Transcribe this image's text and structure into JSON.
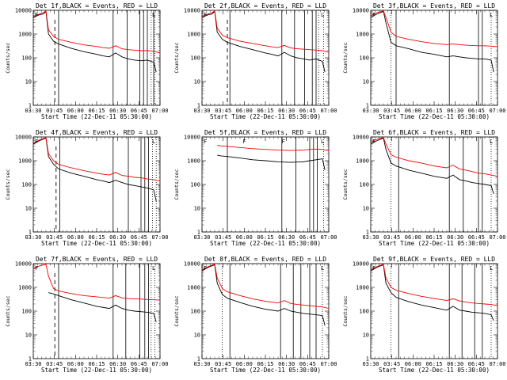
{
  "colors": {
    "events": "#000000",
    "lld": "#ff0000",
    "background": "#ffffff"
  },
  "common": {
    "xticks": [
      "03:30",
      "03:45",
      "06:00",
      "06:15",
      "06:30",
      "06:45",
      "07:00"
    ],
    "xlabel": "Start Time (22-Dec-11 05:30:00)",
    "ylabel": "Counts/sec",
    "yticks": [
      "1",
      "10",
      "100",
      "1000",
      "10000"
    ],
    "ylim": [
      1,
      10000
    ],
    "yscale": "log",
    "xlim": [
      0,
      100
    ]
  },
  "chart_data": [
    {
      "type": "line",
      "title": "Det 1f,BLACK = Events, RED = LLD",
      "corner_marks": [
        "F",
        "L"
      ],
      "dashed_lines": [
        17
      ],
      "solid_lines": [
        20,
        63,
        74,
        84,
        87,
        90,
        95
      ],
      "dotted_lines": [
        93,
        96
      ],
      "series": [
        {
          "name": "Events",
          "color": "#000000",
          "x": [
            0,
            5,
            8,
            10,
            12,
            16,
            20,
            30,
            40,
            50,
            55,
            60,
            65,
            70,
            75,
            80,
            85,
            90,
            95,
            97
          ],
          "values": [
            5000,
            6500,
            7000,
            9000,
            1000,
            500,
            380,
            250,
            180,
            140,
            120,
            110,
            160,
            110,
            90,
            80,
            75,
            80,
            65,
            25
          ]
        },
        {
          "name": "LLD",
          "color": "#ff0000",
          "x": [
            0,
            5,
            8,
            10,
            12,
            16,
            20,
            30,
            40,
            50,
            55,
            60,
            65,
            70,
            75,
            80,
            85,
            90,
            95,
            100
          ],
          "values": [
            5500,
            7000,
            8000,
            9500,
            1500,
            800,
            600,
            450,
            350,
            300,
            270,
            250,
            320,
            240,
            220,
            210,
            200,
            200,
            190,
            160
          ]
        }
      ]
    },
    {
      "type": "line",
      "title": "Det 2f,BLACK = Events, RED = LLD",
      "corner_marks": [
        "F",
        "L"
      ],
      "dashed_lines": [
        20
      ],
      "solid_lines": [
        22,
        63,
        73,
        81,
        87,
        90
      ],
      "dotted_lines": [
        92,
        96
      ],
      "series": [
        {
          "name": "Events",
          "color": "#000000",
          "x": [
            0,
            5,
            8,
            10,
            12,
            16,
            20,
            30,
            40,
            50,
            55,
            60,
            65,
            70,
            75,
            80,
            85,
            90,
            95,
            97
          ],
          "values": [
            5000,
            6500,
            7000,
            9000,
            1200,
            600,
            450,
            300,
            220,
            160,
            140,
            120,
            170,
            120,
            100,
            90,
            80,
            90,
            70,
            25
          ]
        },
        {
          "name": "LLD",
          "color": "#ff0000",
          "x": [
            0,
            5,
            8,
            10,
            12,
            16,
            20,
            30,
            40,
            50,
            55,
            60,
            65,
            70,
            75,
            80,
            85,
            90,
            95,
            100
          ],
          "values": [
            5500,
            7000,
            8000,
            9500,
            1800,
            900,
            700,
            500,
            400,
            320,
            290,
            270,
            330,
            260,
            240,
            230,
            220,
            210,
            200,
            170
          ]
        }
      ]
    },
    {
      "type": "line",
      "title": "Det 3f,BLACK = Events, RED = LLD",
      "corner_marks": [
        "F",
        "L"
      ],
      "dashed_lines": [],
      "solid_lines": [
        20,
        62,
        85,
        88
      ],
      "dotted_lines": [
        16,
        95
      ],
      "series": [
        {
          "name": "Events",
          "color": "#000000",
          "x": [
            0,
            5,
            10,
            12,
            16,
            20,
            30,
            40,
            50,
            60,
            65,
            70,
            75,
            80,
            85,
            90,
            95,
            97
          ],
          "values": [
            5000,
            7000,
            9000,
            3000,
            450,
            320,
            240,
            170,
            140,
            110,
            120,
            110,
            100,
            95,
            90,
            90,
            80,
            25
          ]
        },
        {
          "name": "LLD",
          "color": "#ff0000",
          "x": [
            0,
            5,
            10,
            12,
            16,
            20,
            30,
            40,
            50,
            60,
            65,
            70,
            75,
            80,
            85,
            90,
            95,
            100
          ],
          "values": [
            6000,
            8000,
            9500,
            5000,
            1200,
            800,
            600,
            480,
            400,
            360,
            380,
            360,
            340,
            330,
            320,
            320,
            310,
            290
          ]
        }
      ]
    },
    {
      "type": "line",
      "title": "Det 4f,BLACK = Events, RED = LLD",
      "corner_marks": [
        "F",
        "L"
      ],
      "dashed_lines": [
        18
      ],
      "solid_lines": [
        21,
        63,
        75,
        85,
        88,
        91
      ],
      "dotted_lines": [
        94,
        97
      ],
      "series": [
        {
          "name": "Events",
          "color": "#000000",
          "x": [
            0,
            5,
            10,
            12,
            16,
            20,
            30,
            40,
            50,
            55,
            60,
            65,
            70,
            75,
            80,
            85,
            90,
            95,
            97
          ],
          "values": [
            5000,
            7000,
            9000,
            1500,
            700,
            450,
            300,
            220,
            160,
            140,
            120,
            150,
            120,
            100,
            90,
            80,
            70,
            60,
            20
          ]
        },
        {
          "name": "LLD",
          "color": "#ff0000",
          "x": [
            0,
            5,
            10,
            12,
            16,
            20,
            30,
            40,
            50,
            55,
            60,
            65,
            70,
            75,
            80,
            85,
            90,
            95,
            100
          ],
          "values": [
            5500,
            7500,
            9500,
            2000,
            1000,
            700,
            500,
            380,
            300,
            270,
            250,
            320,
            240,
            220,
            200,
            190,
            170,
            160,
            140
          ]
        }
      ]
    },
    {
      "type": "line",
      "title": "Det 5f,BLACK = Events, RED = LLD",
      "corner_marks": [
        "F",
        "F",
        "F",
        "L"
      ],
      "dashed_lines": [],
      "solid_lines": [
        20,
        63,
        74,
        85,
        88,
        91
      ],
      "dotted_lines": [
        96
      ],
      "series": [
        {
          "name": "Events",
          "color": "#000000",
          "x": [
            12,
            15,
            20,
            30,
            40,
            50,
            60,
            70,
            80,
            85,
            90,
            95,
            97
          ],
          "values": [
            1700,
            1600,
            1500,
            1300,
            1100,
            1000,
            900,
            850,
            900,
            1000,
            1100,
            1200,
            400
          ]
        },
        {
          "name": "LLD",
          "color": "#ff0000",
          "x": [
            12,
            15,
            20,
            30,
            40,
            50,
            60,
            70,
            80,
            85,
            90,
            95,
            100
          ],
          "values": [
            4500,
            4200,
            4000,
            3600,
            3200,
            3000,
            2800,
            2700,
            2800,
            3000,
            3100,
            3000,
            2600
          ]
        }
      ]
    },
    {
      "type": "line",
      "title": "Det 6f,BLACK = Events, RED = LLD",
      "corner_marks": [
        "F",
        "L"
      ],
      "dashed_lines": [],
      "solid_lines": [
        22,
        62,
        73,
        85,
        88
      ],
      "dotted_lines": [
        16,
        95
      ],
      "series": [
        {
          "name": "Events",
          "color": "#000000",
          "x": [
            0,
            5,
            10,
            12,
            16,
            20,
            30,
            40,
            50,
            60,
            65,
            70,
            75,
            80,
            85,
            90,
            95,
            97
          ],
          "values": [
            5000,
            7000,
            9000,
            3000,
            800,
            600,
            400,
            300,
            220,
            180,
            250,
            160,
            140,
            120,
            110,
            100,
            90,
            40
          ]
        },
        {
          "name": "LLD",
          "color": "#ff0000",
          "x": [
            0,
            5,
            10,
            12,
            16,
            20,
            30,
            40,
            50,
            60,
            65,
            70,
            75,
            80,
            85,
            90,
            95,
            100
          ],
          "values": [
            6000,
            8000,
            9500,
            5000,
            1800,
            1400,
            1000,
            800,
            600,
            500,
            650,
            450,
            400,
            350,
            300,
            280,
            250,
            220
          ]
        }
      ]
    },
    {
      "type": "line",
      "title": "Det 7f,BLACK = Events, RED = LLD",
      "corner_marks": [
        "F",
        "L"
      ],
      "dashed_lines": [
        17
      ],
      "solid_lines": [
        20,
        63,
        73,
        84,
        88,
        91
      ],
      "dotted_lines": [
        93,
        96
      ],
      "series": [
        {
          "name": "Events",
          "color": "#000000",
          "x": [
            12,
            15,
            20,
            30,
            40,
            50,
            60,
            65,
            70,
            75,
            80,
            85,
            90,
            95,
            97
          ],
          "values": [
            600,
            550,
            450,
            300,
            220,
            160,
            130,
            180,
            130,
            110,
            100,
            95,
            90,
            80,
            35
          ]
        },
        {
          "name": "LLD",
          "color": "#ff0000",
          "x": [
            0,
            5,
            10,
            12,
            16,
            20,
            30,
            40,
            50,
            60,
            65,
            70,
            75,
            80,
            85,
            90,
            95,
            100
          ],
          "values": [
            6000,
            8000,
            9500,
            3000,
            900,
            700,
            550,
            450,
            400,
            350,
            450,
            360,
            340,
            330,
            320,
            310,
            300,
            290
          ]
        }
      ]
    },
    {
      "type": "line",
      "title": "Det 8f,BLACK = Events, RED = LLD",
      "corner_marks": [
        "F",
        "L"
      ],
      "dashed_lines": [],
      "solid_lines": [
        22,
        62,
        72,
        78,
        85,
        90
      ],
      "dotted_lines": [
        16,
        95
      ],
      "series": [
        {
          "name": "Events",
          "color": "#000000",
          "x": [
            0,
            5,
            10,
            12,
            16,
            20,
            30,
            40,
            50,
            60,
            65,
            70,
            75,
            80,
            85,
            90,
            95,
            97
          ],
          "values": [
            5000,
            7000,
            9000,
            1500,
            500,
            350,
            230,
            160,
            120,
            100,
            130,
            100,
            90,
            80,
            75,
            70,
            65,
            25
          ]
        },
        {
          "name": "LLD",
          "color": "#ff0000",
          "x": [
            0,
            5,
            10,
            12,
            16,
            20,
            30,
            40,
            50,
            60,
            65,
            70,
            75,
            80,
            85,
            90,
            95,
            100
          ],
          "values": [
            5500,
            7500,
            9500,
            2500,
            900,
            650,
            450,
            330,
            260,
            220,
            280,
            210,
            190,
            180,
            170,
            160,
            150,
            130
          ]
        }
      ]
    },
    {
      "type": "line",
      "title": "Det 9f,BLACK = Events, RED = LLD",
      "corner_marks": [
        "F",
        "L"
      ],
      "dashed_lines": [],
      "solid_lines": [
        22,
        62,
        72,
        82,
        88
      ],
      "dotted_lines": [
        16,
        95
      ],
      "series": [
        {
          "name": "Events",
          "color": "#000000",
          "x": [
            0,
            5,
            10,
            12,
            16,
            20,
            30,
            40,
            50,
            60,
            65,
            70,
            75,
            80,
            85,
            90,
            95,
            97
          ],
          "values": [
            5000,
            7000,
            9000,
            1500,
            600,
            380,
            250,
            180,
            140,
            110,
            160,
            110,
            100,
            90,
            85,
            80,
            70,
            40
          ]
        },
        {
          "name": "LLD",
          "color": "#ff0000",
          "x": [
            0,
            5,
            10,
            12,
            16,
            20,
            30,
            40,
            50,
            60,
            65,
            70,
            75,
            80,
            85,
            90,
            95,
            100
          ],
          "values": [
            5500,
            7500,
            9500,
            2500,
            1000,
            750,
            550,
            420,
            340,
            280,
            330,
            270,
            240,
            220,
            210,
            200,
            190,
            170
          ]
        }
      ]
    }
  ]
}
